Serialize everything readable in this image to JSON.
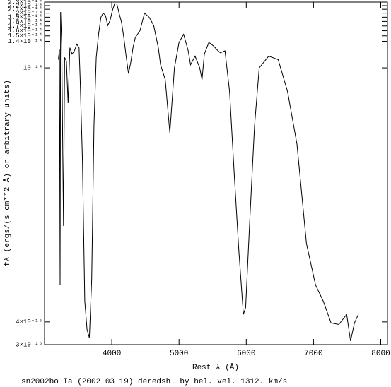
{
  "chart_data": {
    "type": "line",
    "xlabel": "Rest λ (Å)",
    "ylabel": "fλ (ergs/(s cm**2 Å) or arbitrary units)",
    "caption": "sn2002bo Ia (2002 03 19) deredsh. by hel. vel.  1312. km/s",
    "color": "#000000",
    "ylog": true,
    "xlim": [
      3000,
      8100
    ],
    "ylim": [
      3e-16,
      2.3e-14
    ],
    "xticks": [
      4000,
      5000,
      6000,
      7000,
      8000
    ],
    "yticks": [
      {
        "value": 3e-16,
        "label": "3×10⁻¹⁶"
      },
      {
        "value": 4e-16,
        "label": "4×10⁻¹⁶"
      },
      {
        "value": 1e-14,
        "label": "10⁻¹⁴"
      },
      {
        "value": 1.4e-14,
        "label": "1.4×10⁻¹⁴"
      },
      {
        "value": 1.5e-14,
        "label": "1.5×10⁻¹⁴"
      },
      {
        "value": 1.6e-14,
        "label": "1.6×10⁻¹⁴"
      },
      {
        "value": 1.7e-14,
        "label": "1.7×10⁻¹⁴"
      },
      {
        "value": 1.8e-14,
        "label": "1.8×10⁻¹⁴"
      },
      {
        "value": 1.9e-14,
        "label": "1.9×10⁻¹⁴"
      },
      {
        "value": 2e-14,
        "label": "2×10⁻¹⁴"
      },
      {
        "value": 2.1e-14,
        "label": "2.1×10⁻¹⁴"
      },
      {
        "value": 2.2e-14,
        "label": "2.2×10⁻¹⁴"
      },
      {
        "value": 2.3e-14,
        "label": "2.3×10⁻¹⁴"
      }
    ],
    "x": [
      3205,
      3222,
      3231,
      3239,
      3256,
      3282,
      3299,
      3325,
      3350,
      3376,
      3410,
      3444,
      3479,
      3513,
      3530,
      3564,
      3598,
      3632,
      3667,
      3701,
      3735,
      3769,
      3803,
      3838,
      3872,
      3906,
      3940,
      3974,
      4009,
      4043,
      4077,
      4111,
      4145,
      4179,
      4214,
      4248,
      4282,
      4316,
      4350,
      4419,
      4487,
      4556,
      4624,
      4692,
      4726,
      4795,
      4863,
      4932,
      5000,
      5068,
      5137,
      5171,
      5239,
      5308,
      5342,
      5376,
      5444,
      5513,
      5581,
      5615,
      5684,
      5752,
      5821,
      5889,
      5957,
      5991,
      6053,
      6123,
      6193,
      6333,
      6474,
      6614,
      6754,
      6895,
      7029,
      7145,
      7261,
      7377,
      7493,
      7551,
      7609,
      7667
    ],
    "values": [
      1.11e-14,
      1.26e-14,
      6.4e-16,
      2.03e-14,
      1.35e-14,
      1.35e-15,
      1.14e-14,
      1.09e-14,
      6.4e-15,
      1.29e-14,
      1.19e-14,
      1.24e-14,
      1.35e-14,
      1.29e-14,
      8.6e-15,
      3.1e-15,
      5.2e-16,
      3.63e-16,
      3.27e-16,
      6.9e-16,
      4.8e-15,
      1.14e-14,
      1.53e-14,
      1.9e-14,
      2e-14,
      1.94e-14,
      1.71e-14,
      1.82e-14,
      2.07e-14,
      2.26e-14,
      2.24e-14,
      1.98e-14,
      1.78e-14,
      1.47e-14,
      1.16e-14,
      9.3e-15,
      1.07e-14,
      1.29e-14,
      1.47e-14,
      1.6e-14,
      2e-14,
      1.9e-14,
      1.71e-14,
      1.29e-14,
      1.04e-14,
      8.6e-15,
      4.4e-15,
      1e-14,
      1.38e-14,
      1.53e-14,
      1.24e-14,
      1.04e-14,
      1.16e-14,
      1e-14,
      8.6e-15,
      1.19e-14,
      1.38e-14,
      1.32e-14,
      1.24e-14,
      1.21e-14,
      1.24e-14,
      7.4e-15,
      2.6e-15,
      1e-15,
      4.4e-16,
      4.8e-16,
      1.46e-15,
      4.8e-15,
      1e-14,
      1.16e-14,
      1.11e-14,
      7.4e-15,
      3.8e-15,
      1.08e-15,
      6.4e-16,
      5.2e-16,
      3.95e-16,
      3.87e-16,
      4.4e-16,
      3.14e-16,
      3.95e-16,
      4.4e-16
    ]
  }
}
